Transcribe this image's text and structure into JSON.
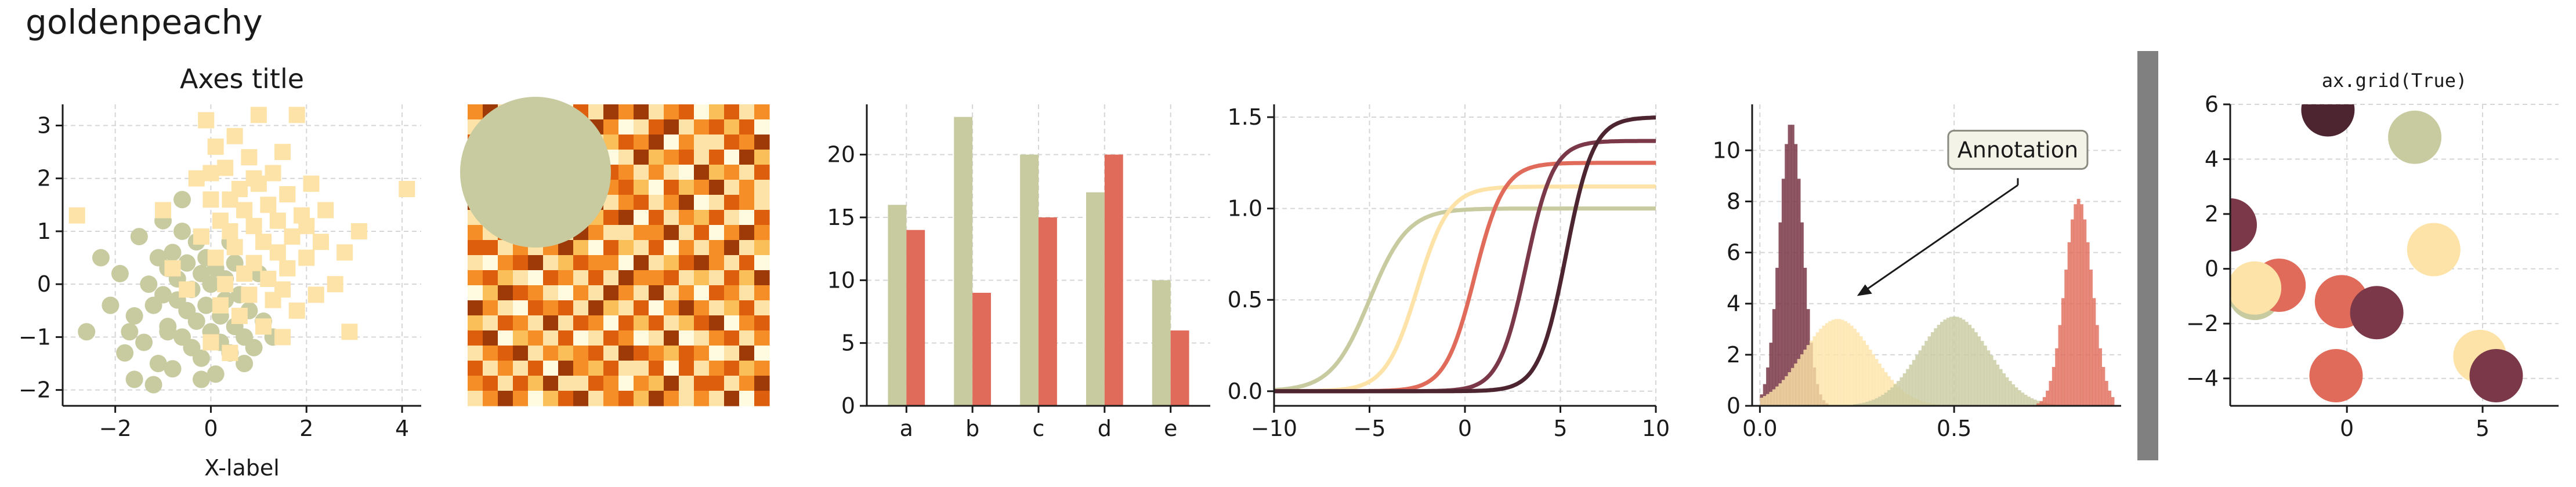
{
  "figure": {
    "suptitle": "goldenpeachy",
    "colors": {
      "c0": "#c8cba0",
      "c1": "#fde3a7",
      "c2": "#e06b5a",
      "c3": "#7a3848",
      "c4": "#4d2530",
      "divider": "#808080"
    }
  },
  "chart_data": [
    {
      "type": "scatter",
      "title": "Axes title",
      "xlabel": "X-label",
      "ylabel": "",
      "xlim": [
        -3.1,
        4.4
      ],
      "ylim": [
        -2.3,
        3.4
      ],
      "xticks": [
        -2,
        0,
        2,
        4
      ],
      "yticks": [
        -2,
        -1,
        0,
        1,
        2,
        3
      ],
      "grid": true,
      "series": [
        {
          "marker": "circle",
          "color": "#c8cba0",
          "points": [
            [
              -2.6,
              -0.9
            ],
            [
              -2.1,
              -0.4
            ],
            [
              -1.9,
              0.2
            ],
            [
              -1.8,
              -1.3
            ],
            [
              -1.6,
              -0.6
            ],
            [
              -1.5,
              0.9
            ],
            [
              -1.4,
              -1.1
            ],
            [
              -1.3,
              0.0
            ],
            [
              -1.2,
              -0.4
            ],
            [
              -1.1,
              0.5
            ],
            [
              -1.1,
              -1.5
            ],
            [
              -1.0,
              1.2
            ],
            [
              -1.0,
              -0.2
            ],
            [
              -0.9,
              0.3
            ],
            [
              -0.9,
              -0.8
            ],
            [
              -0.8,
              -1.6
            ],
            [
              -0.8,
              0.6
            ],
            [
              -0.7,
              -0.3
            ],
            [
              -0.7,
              0.1
            ],
            [
              -0.6,
              -1.0
            ],
            [
              -0.6,
              1.0
            ],
            [
              -0.5,
              -0.5
            ],
            [
              -0.5,
              0.4
            ],
            [
              -0.4,
              -1.2
            ],
            [
              -0.4,
              -0.1
            ],
            [
              -0.3,
              0.8
            ],
            [
              -0.3,
              -0.7
            ],
            [
              -0.2,
              0.2
            ],
            [
              -0.2,
              -1.4
            ],
            [
              -0.1,
              -0.4
            ],
            [
              -0.1,
              0.5
            ],
            [
              0.0,
              -0.9
            ],
            [
              0.0,
              0.0
            ],
            [
              0.1,
              -1.7
            ],
            [
              0.1,
              0.3
            ],
            [
              0.2,
              -0.6
            ],
            [
              0.2,
              -1.1
            ],
            [
              0.3,
              0.1
            ],
            [
              0.3,
              -0.3
            ],
            [
              0.4,
              -1.3
            ],
            [
              0.5,
              -0.8
            ],
            [
              0.5,
              0.4
            ],
            [
              0.6,
              -0.2
            ],
            [
              0.7,
              -1.0
            ],
            [
              0.8,
              -0.5
            ],
            [
              0.9,
              -1.2
            ],
            [
              1.0,
              0.2
            ],
            [
              1.1,
              -0.7
            ],
            [
              -1.6,
              -1.8
            ],
            [
              -0.2,
              -1.8
            ],
            [
              0.7,
              -1.5
            ],
            [
              -2.3,
              0.5
            ],
            [
              -1.7,
              -0.9
            ],
            [
              -0.6,
              1.6
            ],
            [
              1.3,
              -1.0
            ],
            [
              -1.2,
              -1.9
            ],
            [
              -0.9,
              -0.9
            ],
            [
              0.4,
              0.8
            ]
          ]
        },
        {
          "marker": "square",
          "color": "#fde3a7",
          "points": [
            [
              -2.8,
              1.3
            ],
            [
              -1.0,
              1.4
            ],
            [
              -0.8,
              0.3
            ],
            [
              -0.5,
              -0.1
            ],
            [
              -0.3,
              2.0
            ],
            [
              -0.2,
              0.9
            ],
            [
              -0.1,
              3.1
            ],
            [
              0.0,
              1.6
            ],
            [
              0.0,
              -1.1
            ],
            [
              0.1,
              2.6
            ],
            [
              0.1,
              0.5
            ],
            [
              0.2,
              1.2
            ],
            [
              0.2,
              -0.4
            ],
            [
              0.3,
              2.2
            ],
            [
              0.3,
              0.0
            ],
            [
              0.4,
              1.0
            ],
            [
              0.4,
              -1.3
            ],
            [
              0.5,
              2.8
            ],
            [
              0.5,
              0.7
            ],
            [
              0.6,
              1.8
            ],
            [
              0.6,
              -0.6
            ],
            [
              0.7,
              0.2
            ],
            [
              0.7,
              1.4
            ],
            [
              0.8,
              2.4
            ],
            [
              0.8,
              -0.2
            ],
            [
              0.9,
              1.1
            ],
            [
              0.9,
              0.4
            ],
            [
              1.0,
              3.2
            ],
            [
              1.0,
              1.9
            ],
            [
              1.1,
              -0.8
            ],
            [
              1.1,
              0.8
            ],
            [
              1.2,
              1.5
            ],
            [
              1.2,
              0.1
            ],
            [
              1.3,
              2.1
            ],
            [
              1.3,
              -0.3
            ],
            [
              1.4,
              1.2
            ],
            [
              1.4,
              0.6
            ],
            [
              1.5,
              -1.0
            ],
            [
              1.5,
              2.5
            ],
            [
              1.6,
              1.7
            ],
            [
              1.6,
              0.3
            ],
            [
              1.7,
              0.9
            ],
            [
              1.8,
              3.2
            ],
            [
              1.8,
              -0.5
            ],
            [
              1.9,
              1.3
            ],
            [
              2.0,
              0.5
            ],
            [
              2.1,
              1.9
            ],
            [
              2.2,
              -0.2
            ],
            [
              2.3,
              0.8
            ],
            [
              2.4,
              1.4
            ],
            [
              2.6,
              0.0
            ],
            [
              2.8,
              0.6
            ],
            [
              2.9,
              -0.9
            ],
            [
              3.1,
              1.0
            ],
            [
              4.1,
              1.8
            ],
            [
              0.0,
              2.1
            ],
            [
              0.4,
              1.6
            ],
            [
              0.9,
              2.0
            ],
            [
              1.5,
              -0.1
            ],
            [
              2.0,
              1.1
            ]
          ]
        }
      ]
    },
    {
      "type": "heatmap",
      "title": "",
      "rows": 20,
      "cols": 20,
      "colormap": [
        "#fffbe0",
        "#fde3a7",
        "#fbbf59",
        "#f58e27",
        "#dd5f0e",
        "#9e3a07"
      ],
      "values": [
        [
          0.6,
          0.9,
          0.2,
          0.8,
          0.4,
          0.5,
          0.1,
          0.7,
          0.3,
          0.9,
          0.6,
          1.0,
          0.2,
          0.5,
          0.8,
          0.1,
          0.4,
          0.7,
          0.3,
          0.6
        ],
        [
          0.3,
          0.7,
          0.9,
          0.1,
          0.6,
          0.8,
          0.4,
          0.2,
          0.9,
          0.5,
          0.1,
          0.3,
          0.7,
          0.9,
          0.2,
          0.6,
          0.8,
          0.4,
          0.7,
          0.1
        ],
        [
          0.8,
          0.2,
          0.5,
          0.7,
          0.3,
          0.1,
          0.9,
          0.6,
          0.2,
          0.4,
          0.8,
          0.5,
          0.9,
          0.1,
          0.6,
          0.3,
          0.2,
          0.8,
          0.5,
          0.9
        ],
        [
          0.1,
          0.5,
          0.8,
          0.3,
          0.9,
          0.6,
          0.2,
          0.4,
          0.7,
          0.1,
          0.3,
          0.9,
          0.4,
          0.6,
          0.8,
          0.2,
          0.7,
          0.1,
          0.9,
          0.4
        ],
        [
          0.7,
          0.4,
          0.1,
          0.9,
          0.5,
          0.3,
          0.8,
          0.1,
          0.6,
          0.8,
          0.5,
          0.2,
          0.6,
          0.3,
          0.1,
          0.9,
          0.4,
          0.6,
          0.2,
          0.7
        ],
        [
          0.4,
          0.9,
          0.6,
          0.2,
          0.7,
          0.9,
          0.3,
          0.8,
          0.1,
          0.5,
          0.7,
          0.4,
          0.1,
          0.8,
          0.4,
          0.6,
          0.9,
          0.2,
          0.5,
          0.3
        ],
        [
          0.9,
          0.1,
          0.3,
          0.6,
          0.2,
          0.4,
          0.7,
          0.5,
          0.9,
          0.2,
          0.6,
          0.8,
          0.3,
          0.5,
          0.9,
          0.1,
          0.3,
          0.8,
          0.6,
          0.2
        ],
        [
          0.2,
          0.6,
          0.9,
          0.4,
          0.8,
          0.1,
          0.5,
          0.3,
          0.4,
          0.7,
          0.9,
          0.1,
          0.8,
          0.2,
          0.6,
          0.4,
          0.7,
          0.3,
          0.1,
          0.8
        ],
        [
          0.5,
          0.3,
          0.7,
          0.1,
          0.6,
          0.8,
          0.2,
          0.9,
          0.6,
          0.3,
          0.2,
          0.6,
          0.5,
          0.9,
          0.3,
          0.8,
          0.1,
          0.5,
          0.9,
          0.6
        ],
        [
          0.8,
          0.7,
          0.2,
          0.5,
          0.3,
          0.6,
          0.9,
          0.4,
          0.1,
          0.8,
          0.4,
          0.3,
          0.7,
          0.1,
          0.5,
          0.2,
          0.6,
          0.9,
          0.3,
          0.4
        ],
        [
          0.3,
          0.1,
          0.6,
          0.8,
          0.9,
          0.2,
          0.4,
          0.7,
          0.5,
          0.6,
          0.1,
          0.9,
          0.2,
          0.4,
          0.7,
          0.9,
          0.5,
          0.2,
          0.8,
          0.1
        ],
        [
          0.6,
          0.8,
          0.4,
          0.2,
          0.1,
          0.7,
          0.6,
          0.2,
          0.8,
          0.3,
          0.9,
          0.5,
          0.6,
          0.8,
          0.2,
          0.4,
          0.3,
          0.7,
          0.4,
          0.9
        ],
        [
          0.1,
          0.4,
          0.9,
          0.7,
          0.5,
          0.3,
          0.1,
          0.6,
          0.2,
          0.9,
          0.5,
          0.2,
          0.9,
          0.3,
          0.6,
          0.1,
          0.8,
          0.5,
          0.2,
          0.6
        ],
        [
          0.9,
          0.6,
          0.3,
          0.1,
          0.8,
          0.5,
          0.7,
          0.3,
          0.9,
          0.4,
          0.2,
          0.7,
          0.1,
          0.6,
          0.9,
          0.5,
          0.2,
          0.4,
          0.7,
          0.3
        ],
        [
          0.4,
          0.2,
          0.8,
          0.6,
          0.2,
          0.9,
          0.3,
          0.8,
          0.5,
          0.1,
          0.7,
          0.4,
          0.8,
          0.2,
          0.4,
          0.7,
          0.9,
          0.1,
          0.5,
          0.8
        ],
        [
          0.7,
          0.9,
          0.1,
          0.4,
          0.6,
          0.2,
          0.8,
          0.1,
          0.3,
          0.7,
          0.6,
          0.1,
          0.3,
          0.9,
          0.1,
          0.3,
          0.6,
          0.8,
          0.2,
          0.5
        ],
        [
          0.2,
          0.5,
          0.7,
          0.9,
          0.3,
          0.6,
          0.4,
          0.5,
          0.7,
          0.2,
          0.9,
          0.8,
          0.5,
          0.4,
          0.7,
          0.6,
          0.1,
          0.3,
          0.9,
          0.1
        ],
        [
          0.8,
          0.3,
          0.5,
          0.2,
          0.7,
          0.1,
          0.9,
          0.6,
          0.4,
          0.8,
          0.3,
          0.2,
          0.7,
          0.1,
          0.8,
          0.2,
          0.5,
          0.7,
          0.4,
          0.6
        ],
        [
          0.5,
          0.7,
          0.2,
          0.8,
          0.4,
          0.9,
          0.2,
          0.3,
          0.8,
          0.5,
          0.1,
          0.6,
          0.4,
          0.9,
          0.3,
          0.8,
          0.7,
          0.2,
          0.6,
          0.9
        ],
        [
          0.3,
          0.6,
          0.9,
          0.5,
          0.1,
          0.4,
          0.7,
          0.9,
          0.2,
          0.6,
          0.8,
          0.4,
          0.9,
          0.5,
          0.2,
          0.6,
          0.3,
          0.9,
          0.1,
          0.7
        ]
      ],
      "overlay_circle": {
        "color": "#c8cba0",
        "cx": 4.5,
        "cy": 4.5,
        "r": 5
      }
    },
    {
      "type": "bar",
      "title": "",
      "categories": [
        "a",
        "b",
        "c",
        "d",
        "e"
      ],
      "ylim": [
        0,
        24
      ],
      "yticks": [
        0,
        5,
        10,
        15,
        20
      ],
      "grid": true,
      "series": [
        {
          "color": "#c8cba0",
          "values": [
            16,
            23,
            20,
            17,
            10
          ]
        },
        {
          "color": "#e06b5a",
          "values": [
            14,
            9,
            15,
            20,
            6
          ]
        }
      ]
    },
    {
      "type": "line",
      "title": "",
      "xlim": [
        -10,
        10
      ],
      "ylim": [
        -0.08,
        1.57
      ],
      "xticks": [
        -10,
        -5,
        0,
        5,
        10
      ],
      "yticks": [
        0.0,
        0.5,
        1.0,
        1.5
      ],
      "grid": true,
      "series": [
        {
          "color": "#c8cba0",
          "x0": -5,
          "k": 1.0,
          "L": 1.0
        },
        {
          "color": "#fde3a7",
          "x0": -2.5,
          "k": 1.2,
          "L": 1.12
        },
        {
          "color": "#e06b5a",
          "x0": 0.5,
          "k": 1.3,
          "L": 1.25
        },
        {
          "color": "#7a3848",
          "x0": 3.2,
          "k": 1.4,
          "L": 1.37
        },
        {
          "color": "#4d2530",
          "x0": 5.3,
          "k": 1.4,
          "L": 1.5
        }
      ]
    },
    {
      "type": "area",
      "title": "",
      "xlim": [
        -0.02,
        0.93
      ],
      "ylim": [
        0,
        11.8
      ],
      "xticks": [
        0.0,
        0.5
      ],
      "xticklabels": [
        "0.0",
        "0.5"
      ],
      "yticks": [
        0,
        2,
        4,
        6,
        8,
        10
      ],
      "grid": true,
      "series": [
        {
          "color": "#7a3848",
          "alpha": 0.85,
          "mean": 0.08,
          "sd": 0.03,
          "peak": 11.1
        },
        {
          "color": "#fde3a7",
          "alpha": 0.8,
          "mean": 0.2,
          "sd": 0.09,
          "peak": 3.4
        },
        {
          "color": "#c8cba0",
          "alpha": 0.8,
          "mean": 0.5,
          "sd": 0.09,
          "peak": 3.5
        },
        {
          "color": "#e06b5a",
          "alpha": 0.8,
          "mean": 0.82,
          "sd": 0.035,
          "peak": 8.1
        }
      ],
      "annotation": {
        "text": "Annotation",
        "point": [
          0.25,
          4.3
        ],
        "text_at": [
          0.67,
          10.0
        ]
      }
    },
    {
      "type": "scatter",
      "title": "ax.grid(True)",
      "xlim": [
        -4.3,
        7.8
      ],
      "ylim": [
        -5.0,
        6.0
      ],
      "xticks": [
        0,
        5
      ],
      "yticks": [
        -4,
        -2,
        0,
        2,
        4,
        6
      ],
      "grid": true,
      "points": [
        {
          "x": -4.3,
          "y": 1.6,
          "color": "#7a3848"
        },
        {
          "x": -3.4,
          "y": -0.9,
          "color": "#c8cba0"
        },
        {
          "x": -2.5,
          "y": -0.6,
          "color": "#e06b5a"
        },
        {
          "x": -3.4,
          "y": -0.7,
          "color": "#fde3a7"
        },
        {
          "x": -0.7,
          "y": 5.8,
          "color": "#4d2530"
        },
        {
          "x": 2.5,
          "y": 4.8,
          "color": "#c8cba0"
        },
        {
          "x": -0.2,
          "y": -1.2,
          "color": "#e06b5a"
        },
        {
          "x": 1.1,
          "y": -1.6,
          "color": "#7a3848"
        },
        {
          "x": 3.2,
          "y": 0.7,
          "color": "#fde3a7"
        },
        {
          "x": -0.4,
          "y": -3.9,
          "color": "#e06b5a"
        },
        {
          "x": 4.9,
          "y": -3.2,
          "color": "#fde3a7"
        },
        {
          "x": 5.5,
          "y": -3.9,
          "color": "#7a3848"
        }
      ]
    }
  ]
}
